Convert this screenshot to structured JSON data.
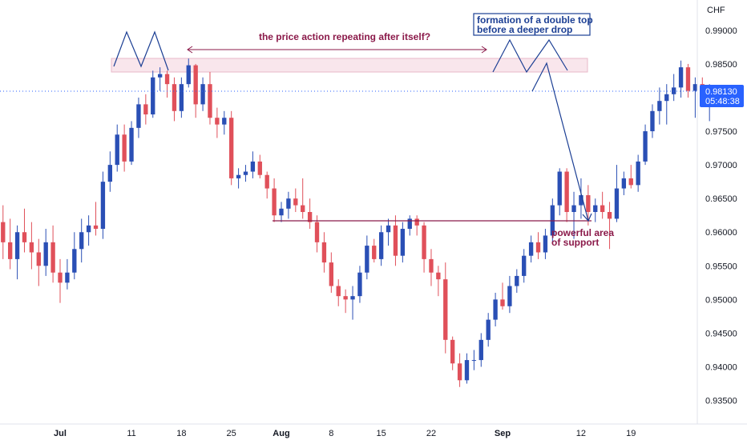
{
  "chart_data": {
    "type": "candlestick",
    "currency_label": "CHF",
    "current_price": "0.98130",
    "countdown": "05:48:38",
    "y_ticks": [
      "0.99000",
      "0.98500",
      "0.98000",
      "0.97500",
      "0.97000",
      "0.96500",
      "0.96000",
      "0.95500",
      "0.95000",
      "0.94500",
      "0.94000",
      "0.93500"
    ],
    "y_tick_values": [
      0.99,
      0.985,
      0.98,
      0.975,
      0.97,
      0.965,
      0.96,
      0.955,
      0.95,
      0.945,
      0.94,
      0.935
    ],
    "ylim": [
      0.9315,
      0.9945
    ],
    "x_ticks": [
      {
        "label": "Jul",
        "date": "Jul 1",
        "bold": true
      },
      {
        "label": "11",
        "date": "Jul 11",
        "bold": false
      },
      {
        "label": "18",
        "date": "Jul 18",
        "bold": false
      },
      {
        "label": "25",
        "date": "Jul 25",
        "bold": false
      },
      {
        "label": "Aug",
        "date": "Aug 1",
        "bold": true
      },
      {
        "label": "8",
        "date": "Aug 8",
        "bold": false
      },
      {
        "label": "15",
        "date": "Aug 15",
        "bold": false
      },
      {
        "label": "22",
        "date": "Aug 22",
        "bold": false
      },
      {
        "label": "Sep",
        "date": "Sep 1",
        "bold": true
      },
      {
        "label": "12",
        "date": "Sep 12",
        "bold": false
      },
      {
        "label": "19",
        "date": "Sep 19",
        "bold": false
      }
    ],
    "annotations": {
      "repeat_text": "the price action repeating after itself?",
      "double_top_line1": "formation of a double top",
      "double_top_line2": "before a deeper drop",
      "support_line1": "powerful area",
      "support_line2": "of support"
    },
    "colors": {
      "up": "#2a4fb5",
      "down": "#e0505a",
      "annotation_red": "#8b1a4a",
      "annotation_blue": "#1c3f94",
      "support_line": "#8b1a4a",
      "current_price": "#2962ff"
    },
    "candles": [
      {
        "date": "Jun 22",
        "o": 0.9645,
        "h": 0.968,
        "l": 0.9585,
        "c": 0.9615
      },
      {
        "date": "Jun 23",
        "o": 0.9615,
        "h": 0.964,
        "l": 0.956,
        "c": 0.9585
      },
      {
        "date": "Jun 24",
        "o": 0.9585,
        "h": 0.962,
        "l": 0.9545,
        "c": 0.956
      },
      {
        "date": "Jun 25",
        "o": 0.956,
        "h": 0.961,
        "l": 0.953,
        "c": 0.96
      },
      {
        "date": "Jun 26",
        "o": 0.96,
        "h": 0.9635,
        "l": 0.957,
        "c": 0.9585
      },
      {
        "date": "Jun 27",
        "o": 0.9585,
        "h": 0.9615,
        "l": 0.9545,
        "c": 0.957
      },
      {
        "date": "Jun 28",
        "o": 0.957,
        "h": 0.959,
        "l": 0.952,
        "c": 0.955
      },
      {
        "date": "Jun 29",
        "o": 0.955,
        "h": 0.9605,
        "l": 0.9535,
        "c": 0.9585
      },
      {
        "date": "Jun 30",
        "o": 0.9585,
        "h": 0.961,
        "l": 0.9525,
        "c": 0.954
      },
      {
        "date": "Jul 1",
        "o": 0.954,
        "h": 0.956,
        "l": 0.9495,
        "c": 0.9525
      },
      {
        "date": "Jul 2",
        "o": 0.9525,
        "h": 0.956,
        "l": 0.9515,
        "c": 0.954
      },
      {
        "date": "Jul 3",
        "o": 0.954,
        "h": 0.96,
        "l": 0.953,
        "c": 0.9575
      },
      {
        "date": "Jul 4",
        "o": 0.9575,
        "h": 0.962,
        "l": 0.9555,
        "c": 0.96
      },
      {
        "date": "Jul 5",
        "o": 0.96,
        "h": 0.9625,
        "l": 0.958,
        "c": 0.961
      },
      {
        "date": "Jul 6",
        "o": 0.961,
        "h": 0.9645,
        "l": 0.9595,
        "c": 0.9605
      },
      {
        "date": "Jul 7",
        "o": 0.9605,
        "h": 0.969,
        "l": 0.959,
        "c": 0.9675
      },
      {
        "date": "Jul 8",
        "o": 0.9675,
        "h": 0.972,
        "l": 0.966,
        "c": 0.97
      },
      {
        "date": "Jul 9",
        "o": 0.97,
        "h": 0.976,
        "l": 0.969,
        "c": 0.9745
      },
      {
        "date": "Jul 10",
        "o": 0.9745,
        "h": 0.976,
        "l": 0.969,
        "c": 0.9705
      },
      {
        "date": "Jul 11",
        "o": 0.9705,
        "h": 0.9765,
        "l": 0.97,
        "c": 0.9755
      },
      {
        "date": "Jul 12",
        "o": 0.9755,
        "h": 0.98,
        "l": 0.974,
        "c": 0.979
      },
      {
        "date": "Jul 13",
        "o": 0.979,
        "h": 0.9805,
        "l": 0.976,
        "c": 0.9775
      },
      {
        "date": "Jul 14",
        "o": 0.9775,
        "h": 0.984,
        "l": 0.977,
        "c": 0.983
      },
      {
        "date": "Jul 15",
        "o": 0.983,
        "h": 0.9845,
        "l": 0.981,
        "c": 0.9835
      },
      {
        "date": "Jul 16",
        "o": 0.9835,
        "h": 0.984,
        "l": 0.98,
        "c": 0.982
      },
      {
        "date": "Jul 17",
        "o": 0.982,
        "h": 0.983,
        "l": 0.9765,
        "c": 0.978
      },
      {
        "date": "Jul 18",
        "o": 0.978,
        "h": 0.983,
        "l": 0.977,
        "c": 0.982
      },
      {
        "date": "Jul 19",
        "o": 0.982,
        "h": 0.9858,
        "l": 0.9815,
        "c": 0.9848
      },
      {
        "date": "Jul 20",
        "o": 0.9848,
        "h": 0.985,
        "l": 0.977,
        "c": 0.979
      },
      {
        "date": "Jul 21",
        "o": 0.979,
        "h": 0.983,
        "l": 0.978,
        "c": 0.982
      },
      {
        "date": "Jul 22",
        "o": 0.982,
        "h": 0.9838,
        "l": 0.976,
        "c": 0.977
      },
      {
        "date": "Jul 23",
        "o": 0.977,
        "h": 0.9785,
        "l": 0.974,
        "c": 0.976
      },
      {
        "date": "Jul 24",
        "o": 0.976,
        "h": 0.978,
        "l": 0.9745,
        "c": 0.977
      },
      {
        "date": "Jul 25",
        "o": 0.977,
        "h": 0.978,
        "l": 0.967,
        "c": 0.968
      },
      {
        "date": "Jul 26",
        "o": 0.968,
        "h": 0.9695,
        "l": 0.9665,
        "c": 0.9685
      },
      {
        "date": "Jul 27",
        "o": 0.9685,
        "h": 0.97,
        "l": 0.9675,
        "c": 0.969
      },
      {
        "date": "Jul 28",
        "o": 0.969,
        "h": 0.972,
        "l": 0.968,
        "c": 0.9705
      },
      {
        "date": "Jul 29",
        "o": 0.9705,
        "h": 0.9715,
        "l": 0.968,
        "c": 0.9685
      },
      {
        "date": "Jul 30",
        "o": 0.9685,
        "h": 0.969,
        "l": 0.965,
        "c": 0.9665
      },
      {
        "date": "Jul 31",
        "o": 0.9665,
        "h": 0.968,
        "l": 0.9615,
        "c": 0.9625
      },
      {
        "date": "Aug 1",
        "o": 0.9625,
        "h": 0.9645,
        "l": 0.9615,
        "c": 0.9635
      },
      {
        "date": "Aug 2",
        "o": 0.9635,
        "h": 0.966,
        "l": 0.962,
        "c": 0.965
      },
      {
        "date": "Aug 3",
        "o": 0.965,
        "h": 0.9665,
        "l": 0.963,
        "c": 0.964
      },
      {
        "date": "Aug 4",
        "o": 0.964,
        "h": 0.968,
        "l": 0.962,
        "c": 0.963
      },
      {
        "date": "Aug 5",
        "o": 0.963,
        "h": 0.965,
        "l": 0.9605,
        "c": 0.9615
      },
      {
        "date": "Aug 6",
        "o": 0.9615,
        "h": 0.9625,
        "l": 0.957,
        "c": 0.9585
      },
      {
        "date": "Aug 7",
        "o": 0.9585,
        "h": 0.96,
        "l": 0.954,
        "c": 0.9555
      },
      {
        "date": "Aug 8",
        "o": 0.9555,
        "h": 0.957,
        "l": 0.951,
        "c": 0.952
      },
      {
        "date": "Aug 9",
        "o": 0.952,
        "h": 0.953,
        "l": 0.949,
        "c": 0.9505
      },
      {
        "date": "Aug 10",
        "o": 0.9505,
        "h": 0.9515,
        "l": 0.948,
        "c": 0.95
      },
      {
        "date": "Aug 11",
        "o": 0.95,
        "h": 0.952,
        "l": 0.947,
        "c": 0.9505
      },
      {
        "date": "Aug 12",
        "o": 0.9505,
        "h": 0.955,
        "l": 0.9495,
        "c": 0.954
      },
      {
        "date": "Aug 13",
        "o": 0.954,
        "h": 0.9595,
        "l": 0.953,
        "c": 0.958
      },
      {
        "date": "Aug 14",
        "o": 0.958,
        "h": 0.959,
        "l": 0.9555,
        "c": 0.956
      },
      {
        "date": "Aug 15",
        "o": 0.956,
        "h": 0.961,
        "l": 0.955,
        "c": 0.96
      },
      {
        "date": "Aug 16",
        "o": 0.96,
        "h": 0.962,
        "l": 0.958,
        "c": 0.961
      },
      {
        "date": "Aug 17",
        "o": 0.961,
        "h": 0.9625,
        "l": 0.955,
        "c": 0.9565
      },
      {
        "date": "Aug 18",
        "o": 0.9565,
        "h": 0.9615,
        "l": 0.9555,
        "c": 0.9605
      },
      {
        "date": "Aug 19",
        "o": 0.9605,
        "h": 0.9625,
        "l": 0.9595,
        "c": 0.962
      },
      {
        "date": "Aug 20",
        "o": 0.962,
        "h": 0.9625,
        "l": 0.9595,
        "c": 0.961
      },
      {
        "date": "Aug 21",
        "o": 0.961,
        "h": 0.9615,
        "l": 0.954,
        "c": 0.956
      },
      {
        "date": "Aug 22",
        "o": 0.956,
        "h": 0.9575,
        "l": 0.952,
        "c": 0.954
      },
      {
        "date": "Aug 23",
        "o": 0.954,
        "h": 0.955,
        "l": 0.9505,
        "c": 0.953
      },
      {
        "date": "Aug 24",
        "o": 0.953,
        "h": 0.9555,
        "l": 0.942,
        "c": 0.944
      },
      {
        "date": "Aug 25",
        "o": 0.944,
        "h": 0.9445,
        "l": 0.9395,
        "c": 0.9405
      },
      {
        "date": "Aug 26",
        "o": 0.9405,
        "h": 0.942,
        "l": 0.937,
        "c": 0.938
      },
      {
        "date": "Aug 27",
        "o": 0.938,
        "h": 0.942,
        "l": 0.9375,
        "c": 0.941
      },
      {
        "date": "Aug 28",
        "o": 0.941,
        "h": 0.9425,
        "l": 0.9395,
        "c": 0.941
      },
      {
        "date": "Aug 29",
        "o": 0.941,
        "h": 0.945,
        "l": 0.94,
        "c": 0.944
      },
      {
        "date": "Aug 30",
        "o": 0.944,
        "h": 0.948,
        "l": 0.943,
        "c": 0.947
      },
      {
        "date": "Aug 31",
        "o": 0.947,
        "h": 0.951,
        "l": 0.946,
        "c": 0.95
      },
      {
        "date": "Sep 1",
        "o": 0.95,
        "h": 0.9525,
        "l": 0.9485,
        "c": 0.949
      },
      {
        "date": "Sep 2",
        "o": 0.949,
        "h": 0.9535,
        "l": 0.948,
        "c": 0.952
      },
      {
        "date": "Sep 3",
        "o": 0.952,
        "h": 0.9545,
        "l": 0.951,
        "c": 0.9535
      },
      {
        "date": "Sep 4",
        "o": 0.9535,
        "h": 0.9575,
        "l": 0.9525,
        "c": 0.9565
      },
      {
        "date": "Sep 5",
        "o": 0.9565,
        "h": 0.9595,
        "l": 0.9555,
        "c": 0.9585
      },
      {
        "date": "Sep 6",
        "o": 0.9585,
        "h": 0.96,
        "l": 0.956,
        "c": 0.957
      },
      {
        "date": "Sep 7",
        "o": 0.957,
        "h": 0.9605,
        "l": 0.956,
        "c": 0.9595
      },
      {
        "date": "Sep 8",
        "o": 0.9595,
        "h": 0.965,
        "l": 0.9585,
        "c": 0.964
      },
      {
        "date": "Sep 9",
        "o": 0.964,
        "h": 0.9695,
        "l": 0.9625,
        "c": 0.969
      },
      {
        "date": "Sep 10",
        "o": 0.969,
        "h": 0.9695,
        "l": 0.9615,
        "c": 0.963
      },
      {
        "date": "Sep 11",
        "o": 0.963,
        "h": 0.966,
        "l": 0.959,
        "c": 0.964
      },
      {
        "date": "Sep 12",
        "o": 0.964,
        "h": 0.968,
        "l": 0.962,
        "c": 0.9655
      },
      {
        "date": "Sep 13",
        "o": 0.9655,
        "h": 0.967,
        "l": 0.961,
        "c": 0.963
      },
      {
        "date": "Sep 14",
        "o": 0.963,
        "h": 0.965,
        "l": 0.9615,
        "c": 0.964
      },
      {
        "date": "Sep 15",
        "o": 0.964,
        "h": 0.966,
        "l": 0.962,
        "c": 0.963
      },
      {
        "date": "Sep 16",
        "o": 0.963,
        "h": 0.9645,
        "l": 0.9575,
        "c": 0.962
      },
      {
        "date": "Sep 17",
        "o": 0.962,
        "h": 0.97,
        "l": 0.9615,
        "c": 0.9665
      },
      {
        "date": "Sep 18",
        "o": 0.9665,
        "h": 0.969,
        "l": 0.9655,
        "c": 0.968
      },
      {
        "date": "Sep 19",
        "o": 0.968,
        "h": 0.97,
        "l": 0.9665,
        "c": 0.967
      },
      {
        "date": "Sep 20",
        "o": 0.967,
        "h": 0.9715,
        "l": 0.966,
        "c": 0.9705
      },
      {
        "date": "Sep 21",
        "o": 0.9705,
        "h": 0.976,
        "l": 0.97,
        "c": 0.975
      },
      {
        "date": "Sep 22",
        "o": 0.975,
        "h": 0.979,
        "l": 0.974,
        "c": 0.978
      },
      {
        "date": "Sep 23",
        "o": 0.978,
        "h": 0.9815,
        "l": 0.976,
        "c": 0.9795
      },
      {
        "date": "Sep 24",
        "o": 0.9795,
        "h": 0.982,
        "l": 0.976,
        "c": 0.9805
      },
      {
        "date": "Sep 25",
        "o": 0.9805,
        "h": 0.9835,
        "l": 0.9795,
        "c": 0.9815
      },
      {
        "date": "Sep 26",
        "o": 0.9815,
        "h": 0.9855,
        "l": 0.98,
        "c": 0.9845
      },
      {
        "date": "Sep 27",
        "o": 0.9845,
        "h": 0.985,
        "l": 0.98,
        "c": 0.981
      },
      {
        "date": "Sep 28",
        "o": 0.981,
        "h": 0.983,
        "l": 0.977,
        "c": 0.982
      },
      {
        "date": "Sep 29",
        "o": 0.982,
        "h": 0.983,
        "l": 0.979,
        "c": 0.98
      },
      {
        "date": "Sep 30",
        "o": 0.98,
        "h": 0.982,
        "l": 0.9765,
        "c": 0.98
      },
      {
        "date": "Oct 1",
        "o": 0.98,
        "h": 0.9815,
        "l": 0.9795,
        "c": 0.9813
      }
    ]
  }
}
